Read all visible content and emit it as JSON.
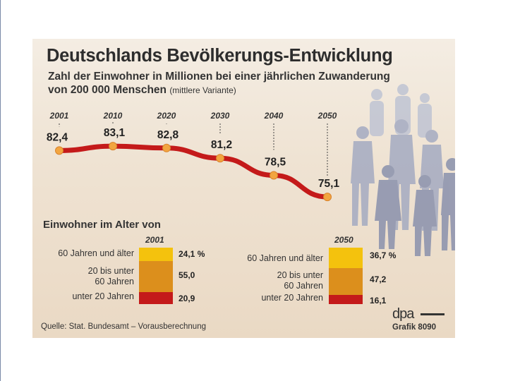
{
  "chart_data": {
    "type": "line",
    "title": "Deutschlands Bevölkerungs-Entwicklung",
    "subtitle_line1": "Zahl der Einwohner in Millionen bei einer jährlichen Zuwanderung",
    "subtitle_line2": "von 200 000 Menschen",
    "subtitle_note": "(mittlere Variante)",
    "x": [
      "2001",
      "2010",
      "2020",
      "2030",
      "2040",
      "2050"
    ],
    "values": [
      82.4,
      83.1,
      82.8,
      81.2,
      78.5,
      75.1
    ],
    "value_labels": [
      "82,4",
      "83,1",
      "82,8",
      "81,2",
      "78,5",
      "75,1"
    ],
    "ylim": [
      70,
      90
    ],
    "line_color": "#c41a1a",
    "marker_color": "#f2a540"
  },
  "age_chart": {
    "heading": "Einwohner im Alter von",
    "colors": {
      "old": "#f4c20d",
      "mid": "#dc8f1c",
      "young": "#c41a1a"
    },
    "groups": [
      {
        "year": "2001",
        "old_label": "60 Jahren und älter",
        "mid_label_1": "20 bis unter",
        "mid_label_2": "60 Jahren",
        "young_label": "unter 20 Jahren",
        "old_value": "24,1 %",
        "mid_value": "55,0",
        "young_value": "20,9",
        "old": 24.1,
        "mid": 55.0,
        "young": 20.9
      },
      {
        "year": "2050",
        "old_label": "60 Jahren und älter",
        "mid_label_1": "20 bis unter",
        "mid_label_2": "60 Jahren",
        "young_label": "unter 20 Jahren",
        "old_value": "36,7 %",
        "mid_value": "47,2",
        "young_value": "16,1",
        "old": 36.7,
        "mid": 47.2,
        "young": 16.1
      }
    ]
  },
  "footer": {
    "source": "Quelle: Stat. Bundesamt – Vorausberechnung",
    "logo": "dpa",
    "grafik": "Grafik 8090"
  }
}
